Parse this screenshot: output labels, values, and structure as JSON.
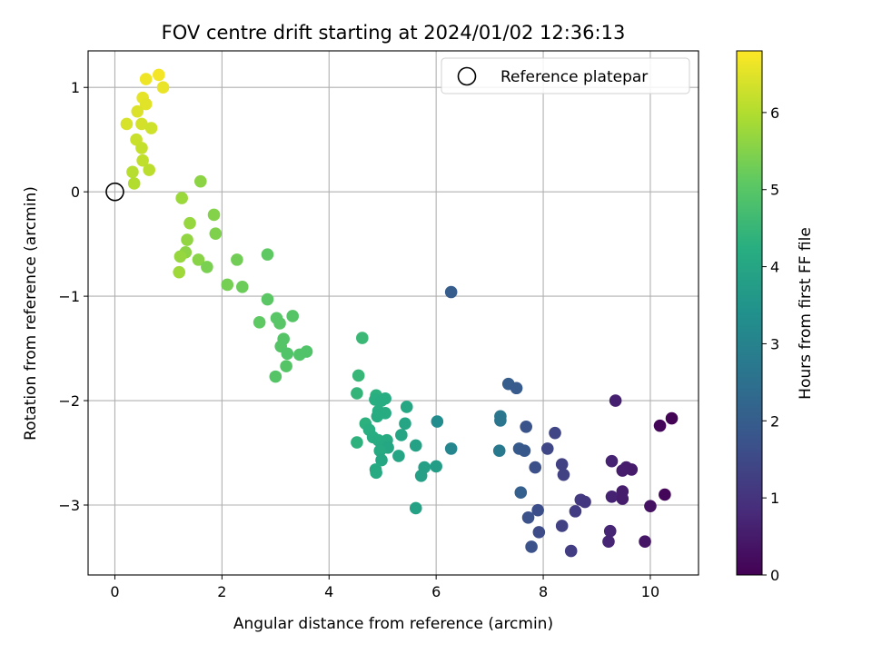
{
  "chart_data": {
    "type": "scatter",
    "title": "FOV centre drift starting at 2024/01/02 12:36:13",
    "xlabel": "Angular distance from reference (arcmin)",
    "ylabel": "Rotation from reference (arcmin)",
    "xlim": [
      -0.5,
      10.9
    ],
    "ylim": [
      -3.67,
      1.35
    ],
    "xticks": [
      0,
      2,
      4,
      6,
      8,
      10
    ],
    "yticks": [
      -3,
      -2,
      -1,
      0,
      1
    ],
    "xtick_labels": [
      "0",
      "2",
      "4",
      "6",
      "8",
      "10"
    ],
    "ytick_labels": [
      "−3",
      "−2",
      "−1",
      "0",
      "1"
    ],
    "grid": true,
    "legend": {
      "placement": "top-right",
      "entries": [
        {
          "label": "Reference platepar",
          "marker": "open-circle"
        }
      ]
    },
    "reference_point": {
      "x": 0,
      "y": 0
    },
    "colorbar": {
      "label": "Hours from first FF file",
      "range": [
        0,
        6.8
      ],
      "ticks": [
        0,
        1,
        2,
        3,
        4,
        5,
        6
      ],
      "tick_labels": [
        "0",
        "1",
        "2",
        "3",
        "4",
        "5",
        "6"
      ],
      "colormap": "viridis"
    },
    "series": [
      {
        "color_by": "hours",
        "points": [
          {
            "x": 0.82,
            "y": 1.12,
            "c": 6.7
          },
          {
            "x": 0.58,
            "y": 1.08,
            "c": 6.65
          },
          {
            "x": 0.9,
            "y": 1.0,
            "c": 6.6
          },
          {
            "x": 0.52,
            "y": 0.9,
            "c": 6.55
          },
          {
            "x": 0.58,
            "y": 0.84,
            "c": 6.5
          },
          {
            "x": 0.42,
            "y": 0.77,
            "c": 6.45
          },
          {
            "x": 0.22,
            "y": 0.65,
            "c": 6.4
          },
          {
            "x": 0.5,
            "y": 0.65,
            "c": 6.35
          },
          {
            "x": 0.68,
            "y": 0.61,
            "c": 6.3
          },
          {
            "x": 0.4,
            "y": 0.5,
            "c": 6.25
          },
          {
            "x": 0.5,
            "y": 0.42,
            "c": 6.2
          },
          {
            "x": 0.52,
            "y": 0.3,
            "c": 6.15
          },
          {
            "x": 0.64,
            "y": 0.21,
            "c": 6.1
          },
          {
            "x": 0.33,
            "y": 0.19,
            "c": 6.05
          },
          {
            "x": 0.36,
            "y": 0.08,
            "c": 6.0
          },
          {
            "x": 1.6,
            "y": 0.1,
            "c": 5.6
          },
          {
            "x": 1.25,
            "y": -0.06,
            "c": 5.75
          },
          {
            "x": 1.85,
            "y": -0.22,
            "c": 5.5
          },
          {
            "x": 1.4,
            "y": -0.3,
            "c": 5.7
          },
          {
            "x": 1.88,
            "y": -0.4,
            "c": 5.45
          },
          {
            "x": 1.35,
            "y": -0.46,
            "c": 5.65
          },
          {
            "x": 1.32,
            "y": -0.58,
            "c": 5.6
          },
          {
            "x": 1.22,
            "y": -0.62,
            "c": 5.7
          },
          {
            "x": 1.56,
            "y": -0.65,
            "c": 5.55
          },
          {
            "x": 2.28,
            "y": -0.65,
            "c": 5.3
          },
          {
            "x": 1.72,
            "y": -0.72,
            "c": 5.4
          },
          {
            "x": 1.2,
            "y": -0.77,
            "c": 5.8
          },
          {
            "x": 2.85,
            "y": -0.6,
            "c": 5.1
          },
          {
            "x": 2.1,
            "y": -0.89,
            "c": 5.35
          },
          {
            "x": 2.38,
            "y": -0.91,
            "c": 5.25
          },
          {
            "x": 2.85,
            "y": -1.03,
            "c": 5.05
          },
          {
            "x": 3.32,
            "y": -1.19,
            "c": 4.95
          },
          {
            "x": 3.02,
            "y": -1.21,
            "c": 5.0
          },
          {
            "x": 2.7,
            "y": -1.25,
            "c": 5.1
          },
          {
            "x": 3.08,
            "y": -1.26,
            "c": 5.0
          },
          {
            "x": 3.15,
            "y": -1.41,
            "c": 4.95
          },
          {
            "x": 3.1,
            "y": -1.48,
            "c": 4.95
          },
          {
            "x": 3.58,
            "y": -1.53,
            "c": 4.9
          },
          {
            "x": 3.22,
            "y": -1.55,
            "c": 4.9
          },
          {
            "x": 3.45,
            "y": -1.56,
            "c": 4.9
          },
          {
            "x": 3.2,
            "y": -1.67,
            "c": 4.95
          },
          {
            "x": 3.0,
            "y": -1.77,
            "c": 4.95
          },
          {
            "x": 4.62,
            "y": -1.4,
            "c": 4.55
          },
          {
            "x": 4.55,
            "y": -1.76,
            "c": 4.5
          },
          {
            "x": 4.52,
            "y": -1.93,
            "c": 4.45
          },
          {
            "x": 4.88,
            "y": -1.95,
            "c": 4.3
          },
          {
            "x": 4.86,
            "y": -1.99,
            "c": 4.25
          },
          {
            "x": 4.98,
            "y": -2.0,
            "c": 4.2
          },
          {
            "x": 5.05,
            "y": -1.98,
            "c": 4.2
          },
          {
            "x": 5.45,
            "y": -2.06,
            "c": 4.05
          },
          {
            "x": 4.92,
            "y": -2.1,
            "c": 4.2
          },
          {
            "x": 5.05,
            "y": -2.12,
            "c": 4.15
          },
          {
            "x": 4.9,
            "y": -2.15,
            "c": 4.15
          },
          {
            "x": 4.68,
            "y": -2.22,
            "c": 4.3
          },
          {
            "x": 5.42,
            "y": -2.22,
            "c": 4.0
          },
          {
            "x": 4.75,
            "y": -2.28,
            "c": 4.25
          },
          {
            "x": 4.82,
            "y": -2.35,
            "c": 4.2
          },
          {
            "x": 5.35,
            "y": -2.33,
            "c": 4.0
          },
          {
            "x": 4.92,
            "y": -2.38,
            "c": 4.15
          },
          {
            "x": 5.08,
            "y": -2.38,
            "c": 4.1
          },
          {
            "x": 4.52,
            "y": -2.4,
            "c": 4.35
          },
          {
            "x": 5.0,
            "y": -2.45,
            "c": 4.1
          },
          {
            "x": 5.1,
            "y": -2.45,
            "c": 4.05
          },
          {
            "x": 5.62,
            "y": -2.43,
            "c": 3.9
          },
          {
            "x": 4.95,
            "y": -2.48,
            "c": 4.1
          },
          {
            "x": 5.3,
            "y": -2.53,
            "c": 4.0
          },
          {
            "x": 4.98,
            "y": -2.57,
            "c": 4.05
          },
          {
            "x": 4.87,
            "y": -2.66,
            "c": 4.1
          },
          {
            "x": 4.88,
            "y": -2.69,
            "c": 4.1
          },
          {
            "x": 5.78,
            "y": -2.64,
            "c": 3.85
          },
          {
            "x": 6.0,
            "y": -2.63,
            "c": 3.75
          },
          {
            "x": 5.72,
            "y": -2.72,
            "c": 3.85
          },
          {
            "x": 5.62,
            "y": -3.03,
            "c": 3.9
          },
          {
            "x": 6.02,
            "y": -2.2,
            "c": 3.3
          },
          {
            "x": 6.28,
            "y": -2.46,
            "c": 3.1
          },
          {
            "x": 6.28,
            "y": -0.96,
            "c": 2.0
          },
          {
            "x": 7.2,
            "y": -2.15,
            "c": 2.7
          },
          {
            "x": 7.2,
            "y": -2.19,
            "c": 2.65
          },
          {
            "x": 7.18,
            "y": -2.48,
            "c": 2.75
          },
          {
            "x": 7.35,
            "y": -1.84,
            "c": 2.0
          },
          {
            "x": 7.5,
            "y": -1.88,
            "c": 1.95
          },
          {
            "x": 7.68,
            "y": -2.25,
            "c": 1.75
          },
          {
            "x": 7.55,
            "y": -2.46,
            "c": 1.9
          },
          {
            "x": 7.65,
            "y": -2.48,
            "c": 1.85
          },
          {
            "x": 7.58,
            "y": -2.88,
            "c": 2.05
          },
          {
            "x": 7.85,
            "y": -2.64,
            "c": 1.65
          },
          {
            "x": 7.9,
            "y": -3.05,
            "c": 1.6
          },
          {
            "x": 7.72,
            "y": -3.12,
            "c": 1.7
          },
          {
            "x": 7.92,
            "y": -3.26,
            "c": 1.55
          },
          {
            "x": 7.78,
            "y": -3.4,
            "c": 1.7
          },
          {
            "x": 8.08,
            "y": -2.46,
            "c": 1.45
          },
          {
            "x": 8.22,
            "y": -2.31,
            "c": 1.4
          },
          {
            "x": 8.35,
            "y": -2.61,
            "c": 1.3
          },
          {
            "x": 8.38,
            "y": -2.71,
            "c": 1.3
          },
          {
            "x": 8.7,
            "y": -2.95,
            "c": 1.15
          },
          {
            "x": 8.78,
            "y": -2.97,
            "c": 1.1
          },
          {
            "x": 8.6,
            "y": -3.06,
            "c": 1.2
          },
          {
            "x": 8.35,
            "y": -3.2,
            "c": 1.3
          },
          {
            "x": 8.52,
            "y": -3.44,
            "c": 1.2
          },
          {
            "x": 9.35,
            "y": -2.0,
            "c": 0.6
          },
          {
            "x": 9.28,
            "y": -2.58,
            "c": 0.65
          },
          {
            "x": 9.55,
            "y": -2.64,
            "c": 0.55
          },
          {
            "x": 9.65,
            "y": -2.66,
            "c": 0.5
          },
          {
            "x": 9.48,
            "y": -2.67,
            "c": 0.55
          },
          {
            "x": 9.48,
            "y": -2.87,
            "c": 0.55
          },
          {
            "x": 9.28,
            "y": -2.92,
            "c": 0.65
          },
          {
            "x": 9.48,
            "y": -2.94,
            "c": 0.55
          },
          {
            "x": 10.0,
            "y": -3.01,
            "c": 0.3
          },
          {
            "x": 9.25,
            "y": -3.25,
            "c": 0.7
          },
          {
            "x": 9.22,
            "y": -3.35,
            "c": 0.7
          },
          {
            "x": 9.9,
            "y": -3.35,
            "c": 0.4
          },
          {
            "x": 10.4,
            "y": -2.17,
            "c": 0.05
          },
          {
            "x": 10.18,
            "y": -2.24,
            "c": 0.1
          },
          {
            "x": 10.27,
            "y": -2.9,
            "c": 0.1
          }
        ]
      }
    ]
  }
}
